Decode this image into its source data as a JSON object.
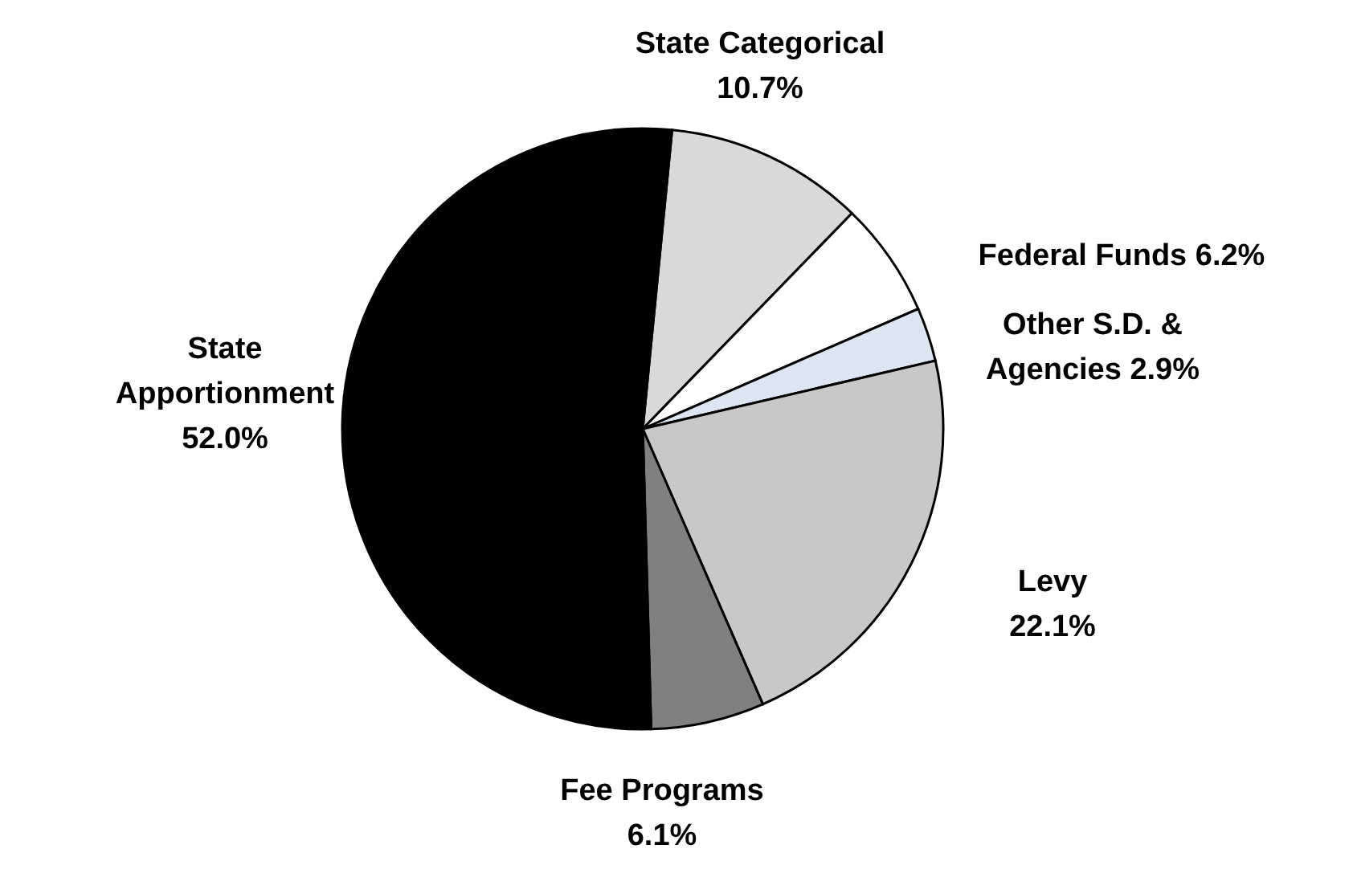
{
  "chart_data": {
    "type": "pie",
    "categories": [
      "State Categorical",
      "Federal Funds",
      "Other S.D. & Agencies",
      "Levy",
      "Fee Programs",
      "State Apportionment"
    ],
    "values": [
      10.7,
      6.2,
      2.9,
      22.1,
      6.1,
      52.0
    ],
    "colors": [
      "#d9d9d9",
      "#ffffff",
      "#dce6f2",
      "#c8c8c8",
      "#808080",
      "#000000"
    ],
    "value_labels": [
      "10.7%",
      "6.2%",
      "2.9%",
      "22.1%",
      "6.1%",
      "52.0%"
    ]
  }
}
